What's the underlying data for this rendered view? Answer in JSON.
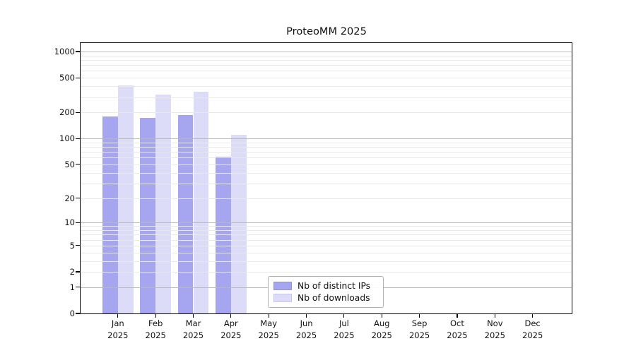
{
  "title": "ProteoMM 2025",
  "chart_data": {
    "type": "bar",
    "title": "ProteoMM 2025",
    "categories": [
      "Jan 2025",
      "Feb 2025",
      "Mar 2025",
      "Apr 2025",
      "May 2025",
      "Jun 2025",
      "Jul 2025",
      "Aug 2025",
      "Sep 2025",
      "Oct 2025",
      "Nov 2025",
      "Dec 2025"
    ],
    "series": [
      {
        "name": "Nb of distinct IPs",
        "color": "#a5a5f0",
        "edge_color": "#9191e2",
        "values": [
          180,
          172,
          185,
          61,
          0,
          0,
          0,
          0,
          0,
          0,
          0,
          0
        ]
      },
      {
        "name": "Nb of downloads",
        "color": "#dcdcf8",
        "edge_color": "#c6c6ee",
        "values": [
          410,
          320,
          345,
          110,
          0,
          0,
          0,
          0,
          0,
          0,
          0,
          0
        ]
      }
    ],
    "xlabel": "",
    "ylabel": "",
    "y_scale": "log10(value+1)",
    "y_ticks": [
      0,
      1,
      2,
      5,
      10,
      20,
      50,
      100,
      200,
      500,
      1000
    ],
    "y_minor_gridlines": [
      2,
      3,
      4,
      5,
      6,
      7,
      8,
      9,
      20,
      30,
      40,
      50,
      60,
      70,
      80,
      90,
      200,
      300,
      400,
      500,
      600,
      700,
      800,
      900
    ],
    "y_major_gridlines": [
      1,
      10,
      100,
      1000
    ],
    "ylim": [
      0,
      1250
    ],
    "grid": "horizontal minor+major, drawn over bars",
    "legend_position": "inside lower-center"
  },
  "legend": {
    "items": [
      {
        "label": "Nb of distinct IPs"
      },
      {
        "label": "Nb of downloads"
      }
    ]
  },
  "colors": {
    "background": "#ffffff",
    "spine": "#000000",
    "grid_minor": "#e9e9e9",
    "grid_major": "#b9b9b9",
    "distinct_ips": "#a5a5f0",
    "downloads": "#dcdcf8"
  }
}
